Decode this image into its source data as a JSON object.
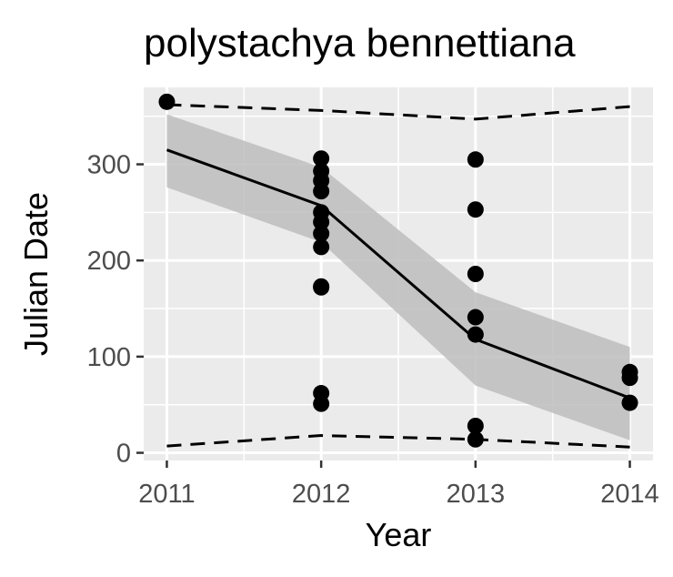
{
  "chart_data": {
    "type": "scatter",
    "title": "polystachya bennettiana",
    "xlabel": "Year",
    "ylabel": "Julian Date",
    "xlim": [
      2010.85,
      2014.15
    ],
    "ylim": [
      -8,
      380
    ],
    "x_ticks": [
      2011,
      2012,
      2013,
      2014
    ],
    "x_tick_labels": [
      "2011",
      "2012",
      "2013",
      "2014"
    ],
    "y_ticks": [
      0,
      100,
      200,
      300
    ],
    "y_tick_labels": [
      "0",
      "100",
      "200",
      "300"
    ],
    "grid": true,
    "background": "#ebebeb",
    "points": [
      {
        "x": 2011,
        "y": 365
      },
      {
        "x": 2012,
        "y": 306
      },
      {
        "x": 2012,
        "y": 293
      },
      {
        "x": 2012,
        "y": 283
      },
      {
        "x": 2012,
        "y": 272
      },
      {
        "x": 2012,
        "y": 250
      },
      {
        "x": 2012,
        "y": 240
      },
      {
        "x": 2012,
        "y": 228
      },
      {
        "x": 2012,
        "y": 214
      },
      {
        "x": 2012,
        "y": 173
      },
      {
        "x": 2012,
        "y": 172
      },
      {
        "x": 2012,
        "y": 62
      },
      {
        "x": 2012,
        "y": 51
      },
      {
        "x": 2013,
        "y": 305
      },
      {
        "x": 2013,
        "y": 253
      },
      {
        "x": 2013,
        "y": 186
      },
      {
        "x": 2013,
        "y": 141
      },
      {
        "x": 2013,
        "y": 123
      },
      {
        "x": 2013,
        "y": 28
      },
      {
        "x": 2013,
        "y": 14
      },
      {
        "x": 2014,
        "y": 84
      },
      {
        "x": 2014,
        "y": 78
      },
      {
        "x": 2014,
        "y": 52
      }
    ],
    "fit_line": {
      "x": [
        2011,
        2012,
        2013,
        2014
      ],
      "y": [
        315,
        257,
        118,
        57
      ]
    },
    "confidence_band": {
      "x": [
        2011,
        2012,
        2013,
        2014
      ],
      "upper": [
        352,
        297,
        167,
        110
      ],
      "lower": [
        276,
        219,
        70,
        13
      ]
    },
    "upper_bound_dashed": {
      "x": [
        2011,
        2012,
        2013,
        2014
      ],
      "y": [
        362,
        356,
        347,
        360
      ]
    },
    "lower_bound_dashed": {
      "x": [
        2011,
        2012,
        2013,
        2014
      ],
      "y": [
        7,
        18,
        14,
        6
      ]
    },
    "colors": {
      "points": "#000000",
      "line": "#000000",
      "band": "#bdbdbd",
      "panel": "#ebebeb",
      "grid": "#ffffff",
      "tick_text": "#4d4d4d"
    }
  }
}
